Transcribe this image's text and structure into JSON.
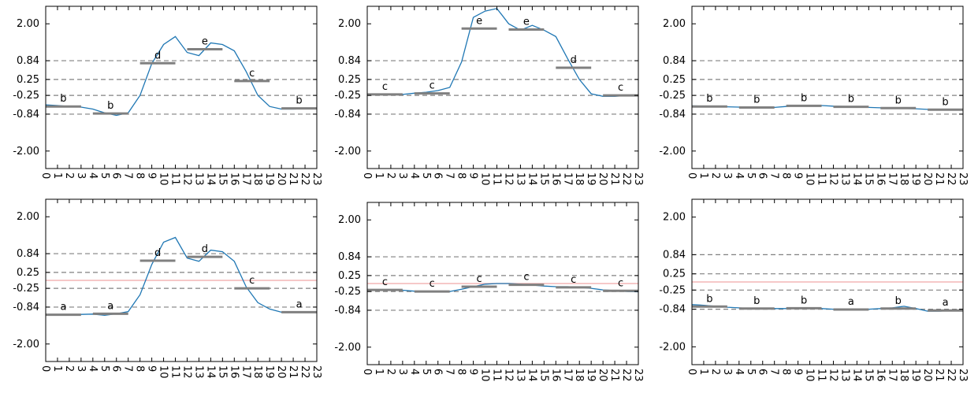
{
  "chart_data": [
    {
      "type": "line",
      "x": [
        0,
        1,
        2,
        3,
        4,
        5,
        6,
        7,
        8,
        9,
        10,
        11,
        12,
        13,
        14,
        15,
        16,
        17,
        18,
        19,
        20,
        21,
        22,
        23
      ],
      "y": [
        -0.55,
        -0.57,
        -0.6,
        -0.62,
        -0.68,
        -0.8,
        -0.88,
        -0.8,
        -0.25,
        0.75,
        1.35,
        1.6,
        1.1,
        1.0,
        1.4,
        1.35,
        1.15,
        0.5,
        -0.25,
        -0.6,
        -0.68,
        -0.68,
        -0.67,
        -0.65
      ],
      "segments": [
        {
          "x0": 0,
          "x1": 3,
          "y": -0.6,
          "label": "b"
        },
        {
          "x0": 4,
          "x1": 7,
          "y": -0.82,
          "label": "b"
        },
        {
          "x0": 8,
          "x1": 11,
          "y": 0.76,
          "label": "d"
        },
        {
          "x0": 12,
          "x1": 15,
          "y": 1.2,
          "label": "e"
        },
        {
          "x0": 16,
          "x1": 19,
          "y": 0.2,
          "label": "c"
        },
        {
          "x0": 20,
          "x1": 23,
          "y": -0.66,
          "label": "b"
        }
      ],
      "ylim": [
        -2.55,
        2.55
      ],
      "yticks": [
        -2.0,
        -0.84,
        -0.25,
        0.25,
        0.84,
        2.0
      ],
      "ytick_labels": [
        "-2.00",
        "-0.84",
        "-0.25",
        "0.25",
        "0.84",
        "2.00"
      ],
      "dashed_lines": [
        -0.84,
        -0.25,
        0.25,
        0.84
      ],
      "hline": null
    },
    {
      "type": "line",
      "x": [
        0,
        1,
        2,
        3,
        4,
        5,
        6,
        7,
        8,
        9,
        10,
        11,
        12,
        13,
        14,
        15,
        16,
        17,
        18,
        19,
        20,
        21,
        22,
        23
      ],
      "y": [
        -0.2,
        -0.22,
        -0.23,
        -0.22,
        -0.18,
        -0.15,
        -0.1,
        0.0,
        0.8,
        2.2,
        2.4,
        2.48,
        2.0,
        1.8,
        1.95,
        1.8,
        1.6,
        0.9,
        0.25,
        -0.2,
        -0.28,
        -0.28,
        -0.25,
        -0.24
      ],
      "segments": [
        {
          "x0": 0,
          "x1": 3,
          "y": -0.22,
          "label": "c"
        },
        {
          "x0": 4,
          "x1": 7,
          "y": -0.19,
          "label": "c"
        },
        {
          "x0": 8,
          "x1": 11,
          "y": 1.85,
          "label": "e"
        },
        {
          "x0": 12,
          "x1": 15,
          "y": 1.82,
          "label": "e"
        },
        {
          "x0": 16,
          "x1": 19,
          "y": 0.62,
          "label": "d"
        },
        {
          "x0": 20,
          "x1": 23,
          "y": -0.25,
          "label": "c"
        }
      ],
      "ylim": [
        -2.55,
        2.55
      ],
      "yticks": [
        -2.0,
        -0.84,
        -0.25,
        0.25,
        0.84,
        2.0
      ],
      "ytick_labels": [
        "-2.00",
        "-0.84",
        "-0.25",
        "0.25",
        "0.84",
        "2.00"
      ],
      "dashed_lines": [
        -0.84,
        -0.25,
        0.25,
        0.84
      ],
      "hline": null
    },
    {
      "type": "line",
      "x": [
        0,
        1,
        2,
        3,
        4,
        5,
        6,
        7,
        8,
        9,
        10,
        11,
        12,
        13,
        14,
        15,
        16,
        17,
        18,
        19,
        20,
        21,
        22,
        23
      ],
      "y": [
        -0.58,
        -0.59,
        -0.6,
        -0.61,
        -0.62,
        -0.63,
        -0.64,
        -0.63,
        -0.6,
        -0.58,
        -0.57,
        -0.57,
        -0.59,
        -0.6,
        -0.62,
        -0.63,
        -0.64,
        -0.65,
        -0.66,
        -0.67,
        -0.69,
        -0.7,
        -0.7,
        -0.7
      ],
      "segments": [
        {
          "x0": 0,
          "x1": 3,
          "y": -0.6,
          "label": "b"
        },
        {
          "x0": 4,
          "x1": 7,
          "y": -0.63,
          "label": "b"
        },
        {
          "x0": 8,
          "x1": 11,
          "y": -0.58,
          "label": "b"
        },
        {
          "x0": 12,
          "x1": 15,
          "y": -0.61,
          "label": "b"
        },
        {
          "x0": 16,
          "x1": 19,
          "y": -0.65,
          "label": "b"
        },
        {
          "x0": 20,
          "x1": 23,
          "y": -0.7,
          "label": "b"
        }
      ],
      "ylim": [
        -2.55,
        2.55
      ],
      "yticks": [
        -2.0,
        -0.84,
        -0.25,
        0.25,
        0.84,
        2.0
      ],
      "ytick_labels": [
        "-2.00",
        "-0.84",
        "-0.25",
        "0.25",
        "0.84",
        "2.00"
      ],
      "dashed_lines": [
        -0.84,
        -0.25,
        0.25,
        0.84
      ],
      "hline": null
    },
    {
      "type": "line",
      "x": [
        0,
        1,
        2,
        3,
        4,
        5,
        6,
        7,
        8,
        9,
        10,
        11,
        12,
        13,
        14,
        15,
        16,
        17,
        18,
        19,
        20,
        21,
        22,
        23
      ],
      "y": [
        -1.1,
        -1.1,
        -1.08,
        -1.07,
        -1.06,
        -1.1,
        -1.05,
        -0.98,
        -0.45,
        0.5,
        1.2,
        1.35,
        0.7,
        0.6,
        0.95,
        0.9,
        0.6,
        -0.2,
        -0.7,
        -0.9,
        -1.0,
        -1.0,
        -0.99,
        -0.98
      ],
      "segments": [
        {
          "x0": 0,
          "x1": 3,
          "y": -1.08,
          "label": "a"
        },
        {
          "x0": 4,
          "x1": 7,
          "y": -1.05,
          "label": "a"
        },
        {
          "x0": 8,
          "x1": 11,
          "y": 0.62,
          "label": "d"
        },
        {
          "x0": 12,
          "x1": 15,
          "y": 0.74,
          "label": "d"
        },
        {
          "x0": 16,
          "x1": 19,
          "y": -0.25,
          "label": "c"
        },
        {
          "x0": 20,
          "x1": 23,
          "y": -1.0,
          "label": "a"
        }
      ],
      "ylim": [
        -2.55,
        2.55
      ],
      "yticks": [
        -2.0,
        -0.84,
        -0.25,
        0.25,
        0.84,
        2.0
      ],
      "ytick_labels": [
        "-2.00",
        "-0.84",
        "-0.25",
        "0.25",
        "0.84",
        "2.00"
      ],
      "dashed_lines": [
        -0.84,
        -0.25,
        0.25,
        0.84
      ],
      "hline": 0.0
    },
    {
      "type": "line",
      "x": [
        0,
        1,
        2,
        3,
        4,
        5,
        6,
        7,
        8,
        9,
        10,
        11,
        12,
        13,
        14,
        15,
        16,
        17,
        18,
        19,
        20,
        21,
        22,
        23
      ],
      "y": [
        -0.2,
        -0.2,
        -0.2,
        -0.21,
        -0.24,
        -0.26,
        -0.26,
        -0.25,
        -0.18,
        -0.1,
        -0.02,
        0.0,
        0.0,
        -0.02,
        -0.05,
        -0.08,
        -0.1,
        -0.1,
        -0.12,
        -0.15,
        -0.2,
        -0.22,
        -0.25,
        -0.26
      ],
      "segments": [
        {
          "x0": 0,
          "x1": 3,
          "y": -0.2,
          "label": "c"
        },
        {
          "x0": 4,
          "x1": 7,
          "y": -0.25,
          "label": "c"
        },
        {
          "x0": 8,
          "x1": 11,
          "y": -0.1,
          "label": "c"
        },
        {
          "x0": 12,
          "x1": 15,
          "y": -0.04,
          "label": "c"
        },
        {
          "x0": 16,
          "x1": 19,
          "y": -0.12,
          "label": "c"
        },
        {
          "x0": 20,
          "x1": 23,
          "y": -0.23,
          "label": "c"
        }
      ],
      "ylim": [
        -2.55,
        2.55
      ],
      "yticks": [
        -2.0,
        -0.84,
        -0.25,
        0.25,
        0.84,
        2.0
      ],
      "ytick_labels": [
        "-2.00",
        "-0.84",
        "-0.25",
        "0.25",
        "0.84",
        "2.00"
      ],
      "dashed_lines": [
        -0.84,
        -0.25,
        0.25,
        0.84
      ],
      "hline": 0.0
    },
    {
      "type": "line",
      "x": [
        0,
        1,
        2,
        3,
        4,
        5,
        6,
        7,
        8,
        9,
        10,
        11,
        12,
        13,
        14,
        15,
        16,
        17,
        18,
        19,
        20,
        21,
        22,
        23
      ],
      "y": [
        -0.7,
        -0.72,
        -0.75,
        -0.78,
        -0.8,
        -0.82,
        -0.83,
        -0.82,
        -0.82,
        -0.81,
        -0.81,
        -0.82,
        -0.84,
        -0.85,
        -0.85,
        -0.84,
        -0.82,
        -0.8,
        -0.75,
        -0.82,
        -0.9,
        -0.9,
        -0.88,
        -0.86
      ],
      "segments": [
        {
          "x0": 0,
          "x1": 3,
          "y": -0.76,
          "label": "b"
        },
        {
          "x0": 4,
          "x1": 7,
          "y": -0.82,
          "label": "b"
        },
        {
          "x0": 8,
          "x1": 11,
          "y": -0.81,
          "label": "b"
        },
        {
          "x0": 12,
          "x1": 15,
          "y": -0.85,
          "label": "a"
        },
        {
          "x0": 16,
          "x1": 19,
          "y": -0.82,
          "label": "b"
        },
        {
          "x0": 20,
          "x1": 23,
          "y": -0.88,
          "label": "a"
        }
      ],
      "ylim": [
        -2.55,
        2.55
      ],
      "yticks": [
        -2.0,
        -0.84,
        -0.25,
        0.25,
        0.84,
        2.0
      ],
      "ytick_labels": [
        "-2.00",
        "-0.84",
        "-0.25",
        "0.25",
        "0.84",
        "2.00"
      ],
      "dashed_lines": [
        -0.84,
        -0.25,
        0.25,
        0.84
      ],
      "hline": 0.0
    }
  ],
  "colors": {
    "line": "#1f77b4",
    "segment": "#808080",
    "dashed": "#808080",
    "hline": "#f4b6b6",
    "axes": "#000000"
  }
}
